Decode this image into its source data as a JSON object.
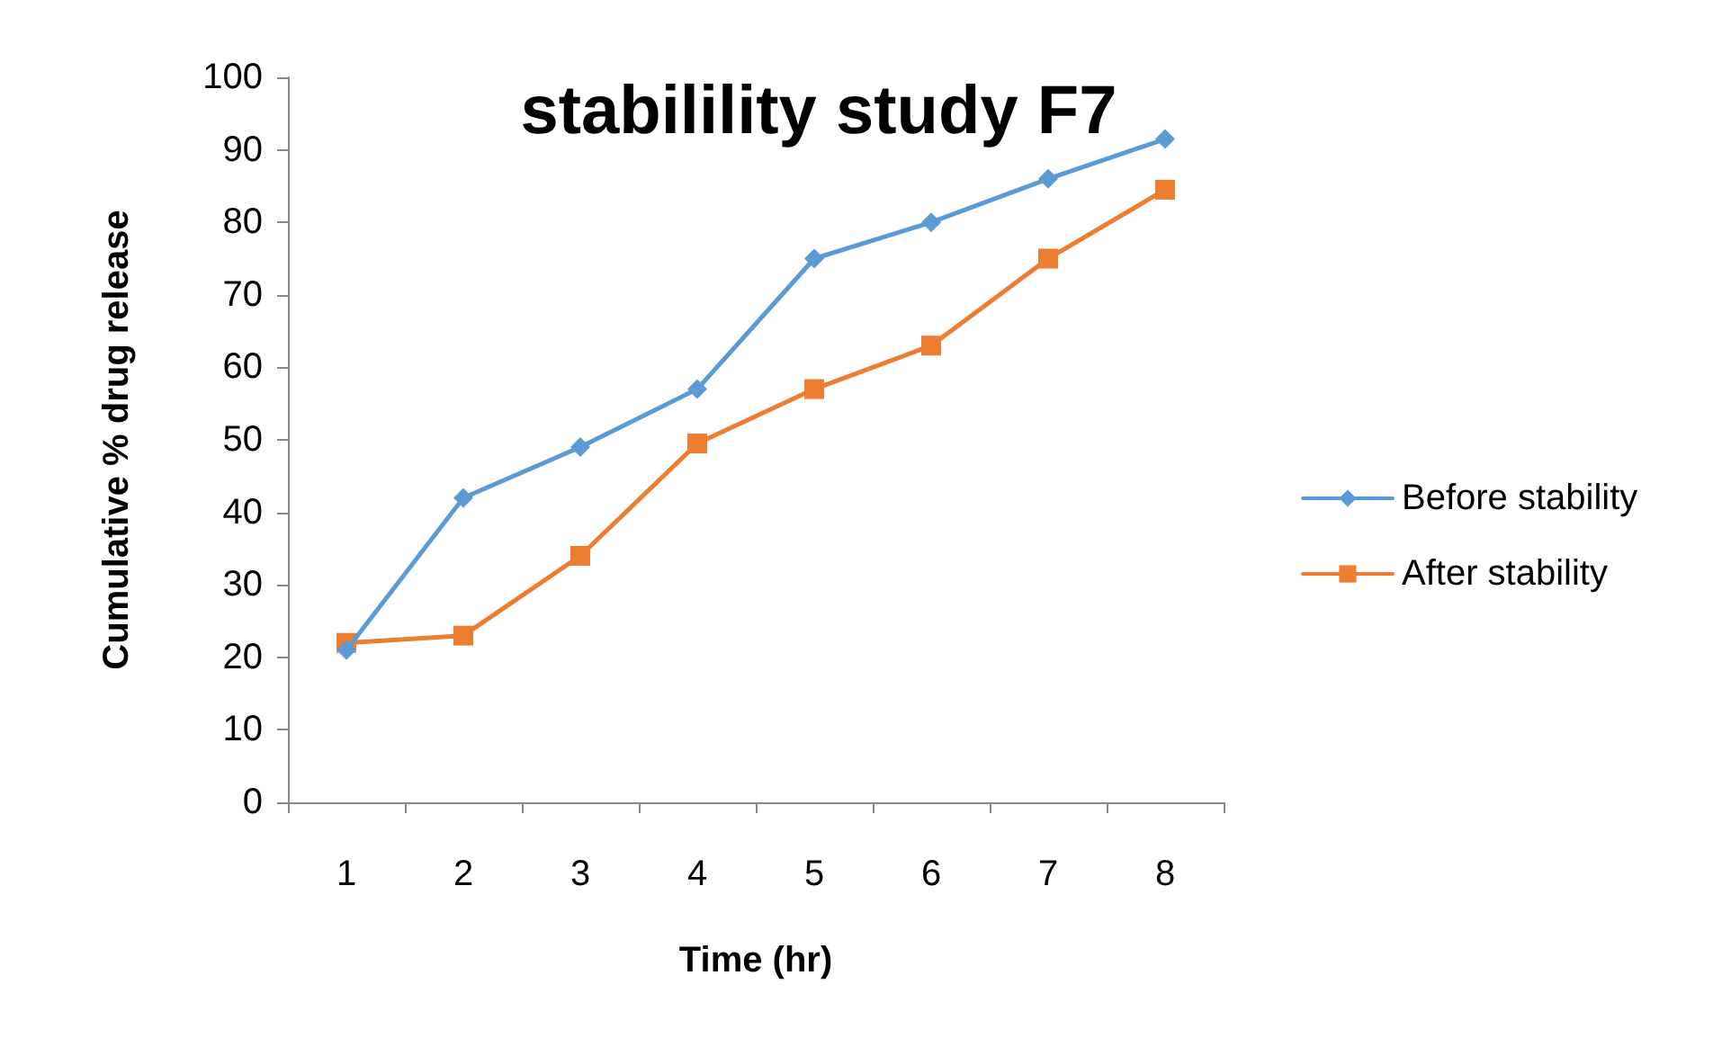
{
  "chart_data": {
    "type": "line",
    "title": "stabilility study F7",
    "xlabel": "Time (hr)",
    "ylabel": "Cumulative % drug release",
    "categories": [
      "1",
      "2",
      "3",
      "4",
      "5",
      "6",
      "7",
      "8"
    ],
    "series": [
      {
        "name": "Before stability",
        "color": "#5b9bd5",
        "marker": "diamond",
        "values": [
          21,
          42,
          49,
          57,
          75,
          80,
          86,
          91.5
        ]
      },
      {
        "name": "After stability",
        "color": "#ed7d31",
        "marker": "square",
        "values": [
          22,
          23,
          34,
          49.5,
          57,
          63,
          75,
          84.5
        ]
      }
    ],
    "ylim": [
      0,
      100
    ],
    "yticks": [
      0,
      10,
      20,
      30,
      40,
      50,
      60,
      70,
      80,
      90,
      100
    ],
    "grid": false,
    "legend": "right",
    "line_style": "solid"
  }
}
